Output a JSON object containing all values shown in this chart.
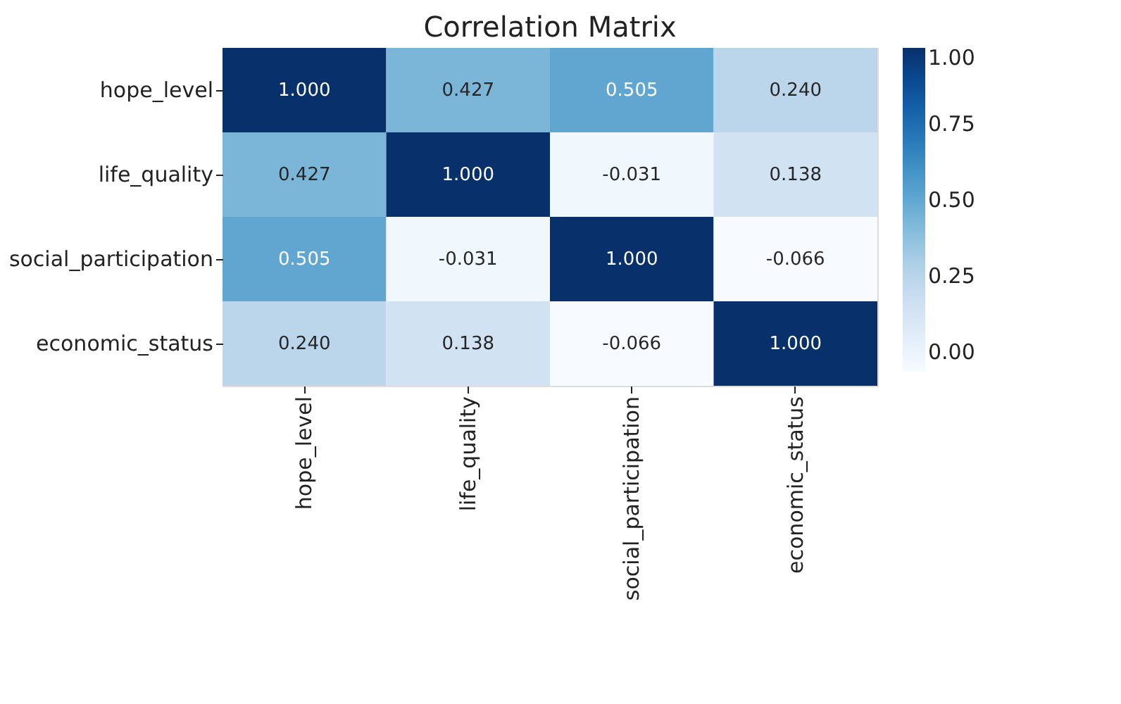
{
  "chart_data": {
    "type": "heatmap",
    "title": "Correlation Matrix",
    "categories": [
      "hope_level",
      "life_quality",
      "social_participation",
      "economic_status"
    ],
    "y_categories": [
      "hope_level",
      "life_quality",
      "social_participation",
      "economic_status"
    ],
    "cells": [
      [
        1.0,
        0.427,
        0.505,
        0.24
      ],
      [
        0.427,
        1.0,
        -0.031,
        0.138
      ],
      [
        0.505,
        -0.031,
        1.0,
        -0.066
      ],
      [
        0.24,
        0.138,
        -0.066,
        1.0
      ]
    ],
    "cell_labels": [
      [
        "1.000",
        "0.427",
        "0.505",
        "0.240"
      ],
      [
        "0.427",
        "1.000",
        "-0.031",
        "0.138"
      ],
      [
        "0.505",
        "-0.031",
        "1.000",
        "-0.066"
      ],
      [
        "0.240",
        "0.138",
        "-0.066",
        "1.000"
      ]
    ],
    "clim": [
      -0.066,
      1.0
    ],
    "cticks": [
      {
        "value": 0,
        "label": "0.00"
      },
      {
        "value": 0.25,
        "label": "0.25"
      },
      {
        "value": 0.5,
        "label": "0.50"
      },
      {
        "value": 0.75,
        "label": "0.75"
      },
      {
        "value": 1,
        "label": "1.00"
      }
    ]
  }
}
